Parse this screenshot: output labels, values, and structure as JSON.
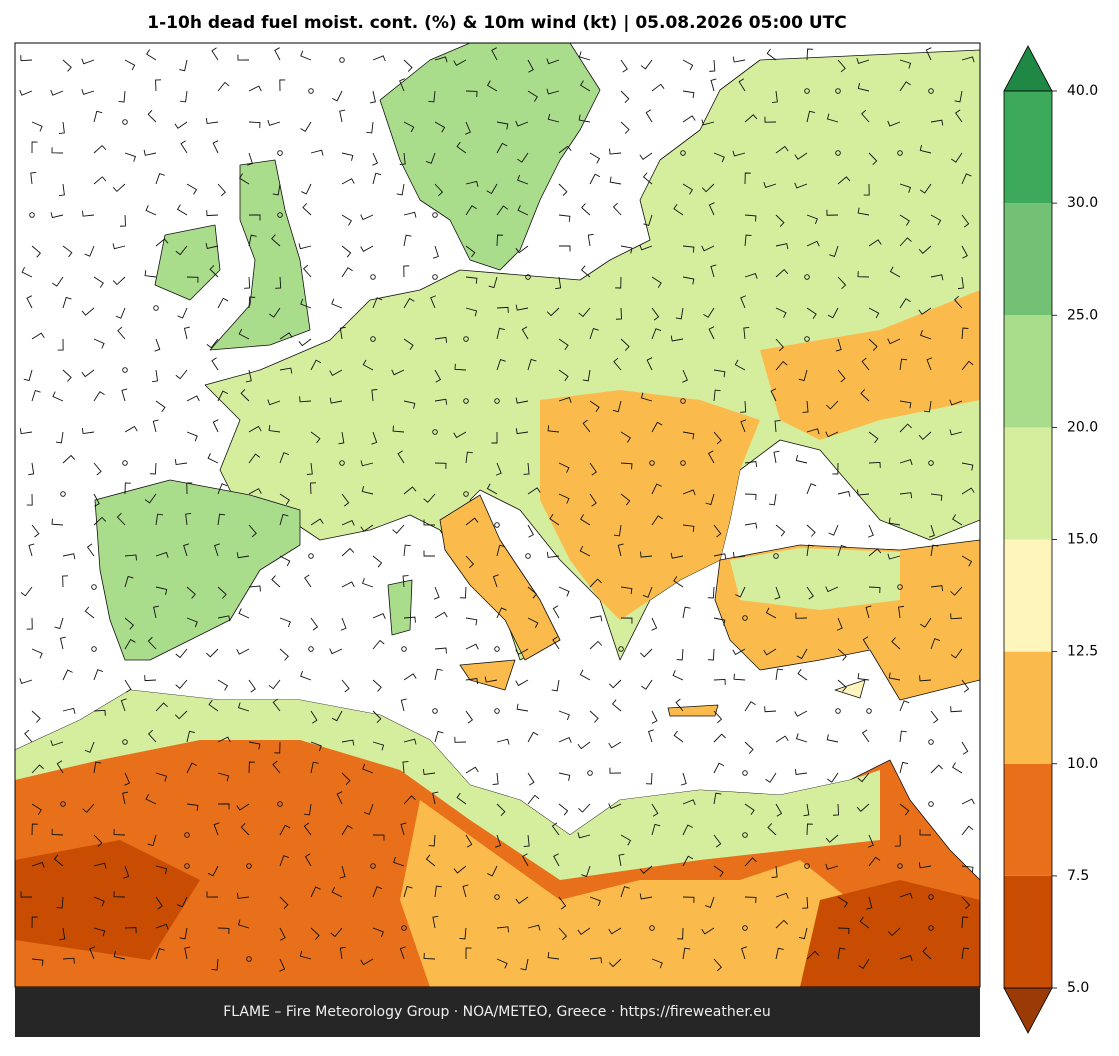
{
  "title": "1-10h dead fuel moist. cont. (%) & 10m wind (kt)  |  05.08.2026 05:00 UTC",
  "footer": "FLAME – Fire Meteorology Group · NOA/METEO, Greece · https://fireweather.eu",
  "colorbar": {
    "ticks": [
      {
        "value": 5,
        "label": "5.0"
      },
      {
        "value": 7.5,
        "label": "7.5"
      },
      {
        "value": 10,
        "label": "10.0"
      },
      {
        "value": 12.5,
        "label": "12.5"
      },
      {
        "value": 15,
        "label": "15.0"
      },
      {
        "value": 20,
        "label": "20.0"
      },
      {
        "value": 25,
        "label": "25.0"
      },
      {
        "value": 30,
        "label": "30.0"
      },
      {
        "value": 40,
        "label": "40.0"
      }
    ],
    "colors": [
      "#c84c02",
      "#e8701a",
      "#fbbb4c",
      "#fef5bd",
      "#d5ee9e",
      "#a9dc8b",
      "#72c175",
      "#3ca95b"
    ],
    "extend_low_color": "#9a3a05",
    "extend_high_color": "#1f8845"
  }
}
